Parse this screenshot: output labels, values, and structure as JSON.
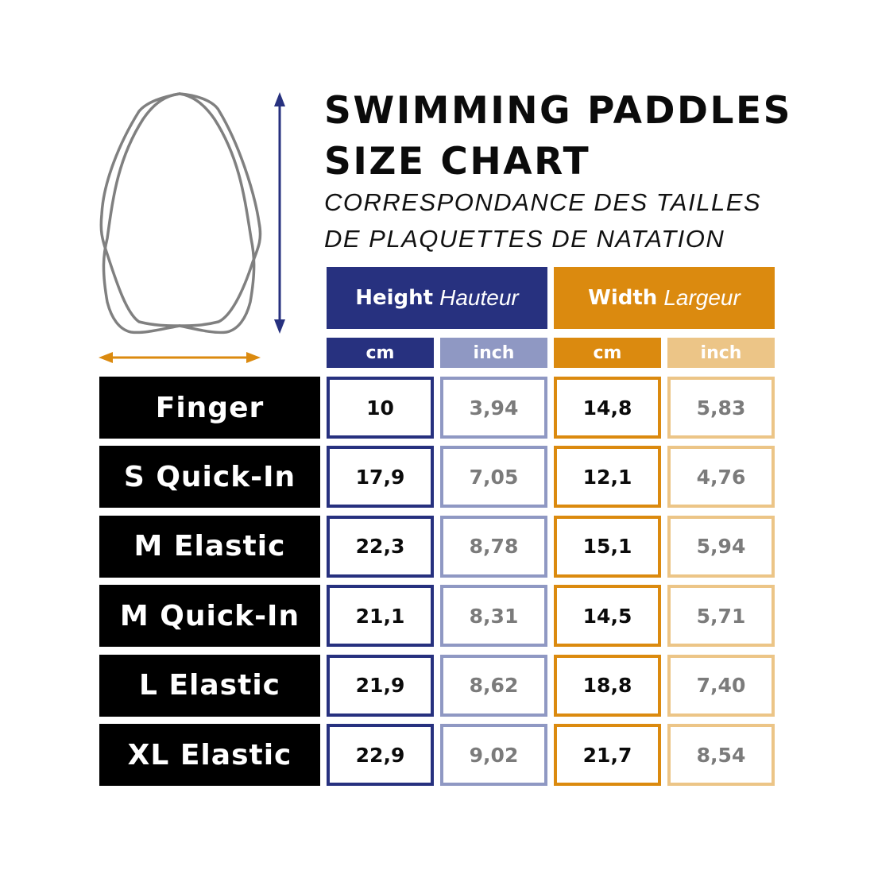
{
  "title_lines": [
    "SWIMMING PADDLES",
    "SIZE CHART"
  ],
  "subtitle_lines": [
    "CORRESPONDANCE DES TAILLES",
    "DE PLAQUETTES DE NATATION"
  ],
  "colors": {
    "height_dark": "#27317f",
    "height_light": "#8f98c3",
    "width_dark": "#db8a0f",
    "width_light": "#ecc587",
    "label_bg": "#000000",
    "outline": "#808080"
  },
  "icons": {
    "paddle": "paddle-outline-icon",
    "height_arrow": "vertical-double-arrow-icon",
    "width_arrow": "horizontal-double-arrow-icon"
  },
  "chart_data": {
    "type": "table",
    "groups": [
      {
        "label_en": "Height",
        "label_fr": "Hauteur",
        "units": [
          "cm",
          "inch"
        ]
      },
      {
        "label_en": "Width",
        "label_fr": "Largeur",
        "units": [
          "cm",
          "inch"
        ]
      }
    ],
    "rows": [
      {
        "size": "Finger",
        "height_cm": "10",
        "height_inch": "3,94",
        "width_cm": "14,8",
        "width_inch": "5,83"
      },
      {
        "size": "S Quick-In",
        "height_cm": "17,9",
        "height_inch": "7,05",
        "width_cm": "12,1",
        "width_inch": "4,76"
      },
      {
        "size": "M Elastic",
        "height_cm": "22,3",
        "height_inch": "8,78",
        "width_cm": "15,1",
        "width_inch": "5,94"
      },
      {
        "size": "M Quick-In",
        "height_cm": "21,1",
        "height_inch": "8,31",
        "width_cm": "14,5",
        "width_inch": "5,71"
      },
      {
        "size": "L Elastic",
        "height_cm": "21,9",
        "height_inch": "8,62",
        "width_cm": "18,8",
        "width_inch": "7,40"
      },
      {
        "size": "XL Elastic",
        "height_cm": "22,9",
        "height_inch": "9,02",
        "width_cm": "21,7",
        "width_inch": "8,54"
      }
    ]
  }
}
